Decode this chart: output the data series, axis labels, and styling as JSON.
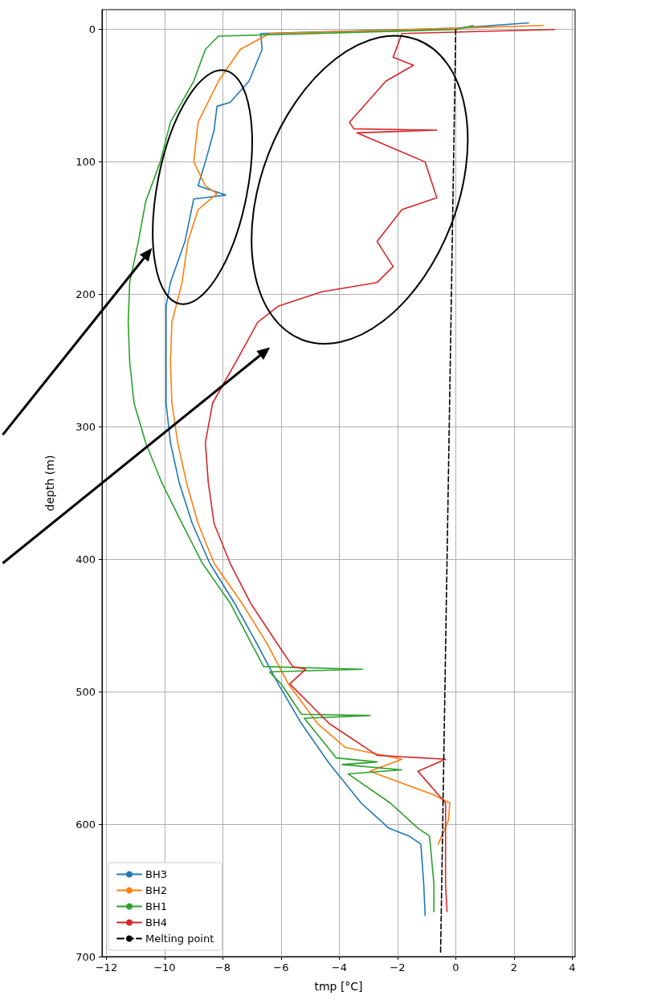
{
  "chart_data": {
    "type": "line",
    "xlabel": "tmp [°C]",
    "ylabel": "depth (m)",
    "xlim": [
      -12.15,
      4.1
    ],
    "xticks": [
      -12,
      -10,
      -8,
      -6,
      -4,
      -2,
      0,
      2,
      4
    ],
    "ylim": [
      700,
      -15
    ],
    "yticks": [
      0,
      100,
      200,
      300,
      400,
      500,
      600,
      700
    ],
    "grid": true,
    "legend": "bottom left",
    "series": [
      {
        "name": "BH3",
        "color": "#1f77b4",
        "x": [
          2.5,
          0,
          -6.7,
          -6.65,
          -7.1,
          -7.75,
          -8.2,
          -8.3,
          -8.6,
          -8.85,
          -7.9,
          -9.0,
          -9.3,
          -9.8,
          -9.95,
          -9.95,
          -9.95,
          -9.8,
          -9.5,
          -9.05,
          -8.45,
          -7.6,
          -6.85,
          -6.1,
          -5.3,
          -4.35,
          -3.25,
          -2.3,
          -1.6,
          -1.2,
          -1.1,
          -1.05
        ],
        "values": [
          -5,
          -1,
          3,
          15,
          39,
          55,
          58,
          76,
          100,
          118,
          125,
          128,
          160,
          191,
          209,
          251,
          282,
          312,
          342,
          373,
          403,
          433,
          463,
          494,
          524,
          554,
          584,
          603,
          609,
          615,
          645,
          669
        ]
      },
      {
        "name": "BH2",
        "color": "#ff7f0e",
        "x": [
          3.0,
          0,
          -6.4,
          -7.4,
          -8.15,
          -8.85,
          -9.0,
          -8.6,
          -8.2,
          -8.85,
          -9.2,
          -9.4,
          -9.75,
          -9.8,
          -9.75,
          -9.55,
          -9.25,
          -8.85,
          -8.3,
          -7.35,
          -6.5,
          -5.75,
          -4.75,
          -3.8,
          -1.85,
          -2.95,
          -1.85,
          -0.75,
          -0.2,
          -0.25,
          -0.6
        ],
        "values": [
          -3,
          -1,
          3,
          15,
          39,
          70,
          100,
          118,
          124,
          136,
          160,
          191,
          221,
          251,
          282,
          312,
          342,
          373,
          403,
          433,
          463,
          494,
          524,
          542,
          551,
          560,
          569,
          578,
          584,
          597,
          615
        ]
      },
      {
        "name": "BH1",
        "color": "#2ca02c",
        "x": [
          0.6,
          0,
          -8.15,
          -8.6,
          -9.0,
          -9.8,
          -10.15,
          -10.65,
          -10.9,
          -11.2,
          -11.25,
          -11.2,
          -11.05,
          -10.65,
          -10.1,
          -9.4,
          -8.7,
          -7.75,
          -6.6,
          -3.2,
          -6.4,
          -6.0,
          -5.3,
          -2.95,
          -5.2,
          -4.1,
          -2.7,
          -3.9,
          -1.85,
          -3.7,
          -2.25,
          -1.3,
          -0.9,
          -0.75,
          -0.75
        ],
        "values": [
          -3,
          0,
          5,
          15,
          39,
          70,
          100,
          130,
          160,
          191,
          221,
          251,
          282,
          312,
          342,
          373,
          403,
          433,
          481,
          483,
          485,
          494,
          517,
          518,
          520,
          550,
          553,
          555,
          559,
          562,
          584,
          603,
          609,
          645,
          666
        ]
      },
      {
        "name": "BH4",
        "color": "#d62728",
        "x": [
          3.4,
          -1.85,
          -2.15,
          -1.45,
          -2.4,
          -3.65,
          -3.5,
          -0.65,
          -3.4,
          -1.05,
          -0.65,
          -1.85,
          -2.7,
          -2.15,
          -2.7,
          -4.6,
          -6.1,
          -6.8,
          -7.55,
          -8.35,
          -8.6,
          -8.5,
          -8.3,
          -7.75,
          -7.05,
          -6.15,
          -5.6,
          -5.15,
          -5.7,
          -4.35,
          -2.7,
          -0.35,
          -1.3,
          -0.35,
          -0.35,
          -0.3
        ],
        "values": [
          0,
          3,
          21,
          27,
          39,
          70,
          75,
          76,
          78,
          100,
          127,
          136,
          160,
          179,
          191,
          198,
          209,
          221,
          251,
          282,
          312,
          342,
          373,
          403,
          433,
          463,
          481,
          483,
          494,
          524,
          548,
          551,
          560,
          584,
          645,
          666
        ]
      },
      {
        "name": "Melting point",
        "color": "#000000",
        "line_style": "dashed",
        "x": [
          0,
          -0.52
        ],
        "values": [
          0,
          697
        ]
      }
    ]
  }
}
